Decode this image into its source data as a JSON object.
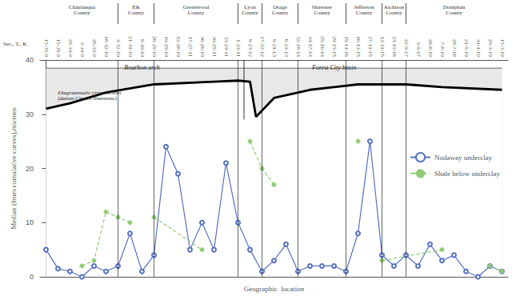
{
  "chart_data": {
    "type": "line",
    "xlabel": "Geographic  location",
    "ylabel": "Median (from cumulative curves),microns",
    "xlim": [
      -0.5,
      38.5
    ],
    "xticks": [
      {
        "value": 0,
        "label": "15-35-9"
      },
      {
        "value": 1,
        "label": "15-35-9"
      },
      {
        "value": 2,
        "label": "29-34-9"
      },
      {
        "value": 3,
        "label": "3-34-9"
      },
      {
        "value": 4,
        "label": "26-33-9"
      },
      {
        "value": 5,
        "label": "18-32-10"
      },
      {
        "value": 6,
        "label": "4-32-10"
      },
      {
        "value": 7,
        "label": "21-31-10"
      },
      {
        "value": 8,
        "label": "9-30-10"
      },
      {
        "value": 9,
        "label": "26-29-10"
      },
      {
        "value": 10,
        "label": "10-29-10"
      },
      {
        "value": 11,
        "label": "12-28-10"
      },
      {
        "value": 12,
        "label": "17-27-11"
      },
      {
        "value": 13,
        "label": "36-26-10"
      },
      {
        "value": 14,
        "label": "30-25-11"
      },
      {
        "value": 15,
        "label": "33-24-11"
      },
      {
        "value": 16,
        "label": "1-24-11"
      },
      {
        "value": 17,
        "label": "9-23-12"
      },
      {
        "value": 18,
        "label": "17-22-12"
      },
      {
        "value": 19,
        "label": "9-21-13"
      },
      {
        "value": 20,
        "label": "6-21-13"
      },
      {
        "value": 21,
        "label": "32-18-14"
      },
      {
        "value": 22,
        "label": "34-17-14"
      },
      {
        "value": 23,
        "label": "25-16-14"
      },
      {
        "value": 24,
        "label": "29-15-15"
      },
      {
        "value": 25,
        "label": "19-14-16"
      },
      {
        "value": 26,
        "label": "16-13-15"
      },
      {
        "value": 27,
        "label": "27-11-15"
      },
      {
        "value": 28,
        "label": "12-11-15"
      },
      {
        "value": 29,
        "label": "23-10-16"
      },
      {
        "value": 30,
        "label": "22-9-17"
      },
      {
        "value": 31,
        "label": "3-9-17"
      },
      {
        "value": 32,
        "label": "26-8-19"
      },
      {
        "value": 33,
        "label": "7-8-19"
      },
      {
        "value": 34,
        "label": "28-7-18"
      },
      {
        "value": 35,
        "label": "21-5-19"
      },
      {
        "value": 36,
        "label": "34-4-19"
      },
      {
        "value": 37,
        "label": "29-3-19"
      },
      {
        "value": 38,
        "label": "15-3-19"
      }
    ],
    "xticks_title": "Sec., T., R.",
    "ylim": [
      0,
      40
    ],
    "yticks": [
      0,
      10,
      20,
      30,
      40
    ],
    "grid": false,
    "legend": "upper right",
    "series": [
      {
        "name": "Nodaway underclay",
        "color": "#5470c6",
        "marker": "open_circle",
        "line_style": "solid",
        "x": [
          0,
          1,
          2,
          3,
          4,
          5,
          6,
          7,
          8,
          9,
          10,
          11,
          12,
          13,
          14,
          15,
          16,
          17,
          18,
          19,
          20,
          21,
          22,
          23,
          24,
          25,
          26,
          27,
          28,
          29,
          30,
          31,
          32,
          33,
          34,
          35,
          36,
          37,
          38
        ],
        "values": [
          5,
          1.5,
          1,
          0,
          2,
          1,
          2,
          8,
          1,
          4,
          24,
          19,
          5,
          10,
          5,
          21,
          10,
          5,
          1,
          3,
          6,
          1,
          2,
          2,
          2,
          1,
          8,
          25,
          4,
          2,
          4,
          2,
          6,
          3,
          4,
          1,
          0,
          2,
          1
        ]
      },
      {
        "name": "Shale below underclay",
        "color": "#91cc75",
        "marker": "circle",
        "line_style": "dashed",
        "segments": [
          {
            "x": [
              3,
              4,
              5,
              6,
              7
            ],
            "values": [
              2,
              3,
              12,
              11,
              10
            ]
          },
          {
            "x": [
              9,
              13
            ],
            "values": [
              11,
              5
            ]
          },
          {
            "x": [
              17,
              18,
              19
            ],
            "values": [
              25,
              20,
              17
            ]
          },
          {
            "x": [
              26
            ],
            "values": [
              25
            ]
          },
          {
            "x": [
              28,
              33
            ],
            "values": [
              3,
              5
            ]
          },
          {
            "x": [
              37,
              38
            ],
            "values": [
              2,
              1
            ]
          }
        ]
      }
    ],
    "counties": [
      {
        "name": "Chautauqua\nCounty",
        "x": [
          0,
          6
        ]
      },
      {
        "name": "Elk\nCounty",
        "x": [
          6,
          9
        ]
      },
      {
        "name": "Greenwood\nCounty",
        "x": [
          9,
          16
        ]
      },
      {
        "name": "Lyon\nCounty",
        "x": [
          16,
          18
        ]
      },
      {
        "name": "Osage\nCounty",
        "x": [
          18,
          21
        ]
      },
      {
        "name": "Shawnee\nCounty",
        "x": [
          21,
          25
        ]
      },
      {
        "name": "Jefferson\nCounty",
        "x": [
          25,
          28
        ]
      },
      {
        "name": "Atchison\nCounty",
        "x": [
          28,
          30
        ]
      },
      {
        "name": "Doniphan\nCounty",
        "x": [
          30,
          38
        ]
      }
    ],
    "county_dividers": [
      6,
      9,
      16,
      18,
      21,
      25,
      28,
      30
    ],
    "cross_section": {
      "color": "#000000",
      "x": [
        0,
        2,
        5,
        9,
        14,
        16,
        17,
        17.5,
        19,
        22,
        24,
        26,
        28,
        30,
        33,
        38
      ],
      "values": [
        31,
        32,
        34,
        35.5,
        36,
        36.2,
        36,
        29.5,
        33,
        34.5,
        35,
        35.5,
        35.5,
        35.5,
        35,
        34.5
      ]
    },
    "band": {
      "y": 38.5,
      "color": "#e8e8e8"
    },
    "lyon_line": {
      "x": 16.5,
      "y": [
        29.0,
        40.0
      ]
    },
    "band_labels": [
      {
        "text": "Bourbon arch",
        "x": 8,
        "y": 39.2
      },
      {
        "text": "Forest City basin",
        "x": 24,
        "y": 39.2
      }
    ],
    "cross_section_label": {
      "text": "Diagrammatic cross section\n(datum Church limestone)",
      "x": 1,
      "y": 33.5
    }
  }
}
